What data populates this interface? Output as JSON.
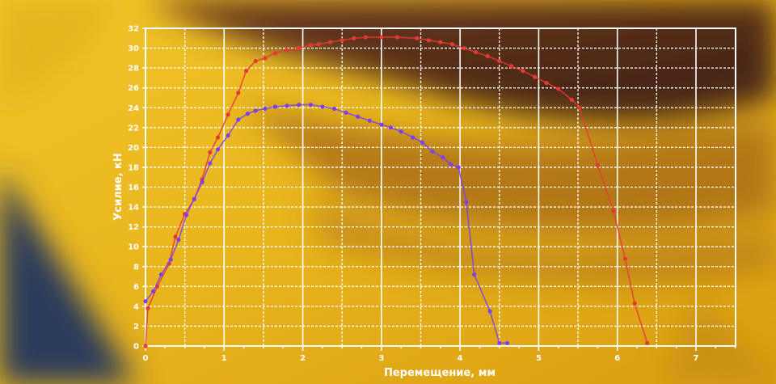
{
  "chart_data": {
    "type": "line",
    "title": "",
    "xlabel": "Перемещение, мм",
    "ylabel": "Усилие, кН",
    "xlim": [
      0,
      7.5
    ],
    "ylim": [
      0,
      32
    ],
    "xticks": [
      "0",
      "1",
      "2",
      "3",
      "4",
      "5",
      "6",
      "7"
    ],
    "yticks": [
      "0",
      "2",
      "4",
      "6",
      "8",
      "10",
      "12",
      "14",
      "16",
      "18",
      "20",
      "22",
      "24",
      "26",
      "28",
      "30",
      "32"
    ],
    "grid": true,
    "legend": "none",
    "series": [
      {
        "color": "#e53935",
        "points": [
          [
            0,
            0
          ],
          [
            0.03,
            3.8
          ],
          [
            0.15,
            6.0
          ],
          [
            0.3,
            8.3
          ],
          [
            0.38,
            11.0
          ],
          [
            0.5,
            13.3
          ],
          [
            0.62,
            14.8
          ],
          [
            0.72,
            16.8
          ],
          [
            0.82,
            19.5
          ],
          [
            0.92,
            21.0
          ],
          [
            1.05,
            23.3
          ],
          [
            1.18,
            25.5
          ],
          [
            1.28,
            27.7
          ],
          [
            1.4,
            28.7
          ],
          [
            1.52,
            29.0
          ],
          [
            1.65,
            29.5
          ],
          [
            1.8,
            29.8
          ],
          [
            1.95,
            30.0
          ],
          [
            2.1,
            30.3
          ],
          [
            2.2,
            30.4
          ],
          [
            2.35,
            30.6
          ],
          [
            2.5,
            30.8
          ],
          [
            2.65,
            31.0
          ],
          [
            2.8,
            31.1
          ],
          [
            3.0,
            31.1
          ],
          [
            3.2,
            31.1
          ],
          [
            3.45,
            31.0
          ],
          [
            3.6,
            30.8
          ],
          [
            3.75,
            30.6
          ],
          [
            3.9,
            30.4
          ],
          [
            4.05,
            30.0
          ],
          [
            4.2,
            29.6
          ],
          [
            4.35,
            29.2
          ],
          [
            4.5,
            28.7
          ],
          [
            4.65,
            28.2
          ],
          [
            4.8,
            27.7
          ],
          [
            4.95,
            27.1
          ],
          [
            5.1,
            26.5
          ],
          [
            5.25,
            25.9
          ],
          [
            5.42,
            24.8
          ],
          [
            5.52,
            24.0
          ],
          [
            5.75,
            18.2
          ],
          [
            5.95,
            13.6
          ],
          [
            6.1,
            8.8
          ],
          [
            6.22,
            4.3
          ],
          [
            6.38,
            0.3
          ]
        ]
      },
      {
        "color": "#7e3ff2",
        "points": [
          [
            0,
            4.5
          ],
          [
            0.1,
            5.5
          ],
          [
            0.2,
            7.2
          ],
          [
            0.32,
            8.7
          ],
          [
            0.42,
            10.7
          ],
          [
            0.52,
            13.2
          ],
          [
            0.62,
            14.8
          ],
          [
            0.72,
            16.5
          ],
          [
            0.82,
            18.4
          ],
          [
            0.92,
            19.8
          ],
          [
            1.05,
            21.2
          ],
          [
            1.18,
            22.8
          ],
          [
            1.3,
            23.4
          ],
          [
            1.4,
            23.7
          ],
          [
            1.52,
            23.9
          ],
          [
            1.65,
            24.1
          ],
          [
            1.8,
            24.2
          ],
          [
            1.95,
            24.3
          ],
          [
            2.1,
            24.3
          ],
          [
            2.25,
            24.1
          ],
          [
            2.4,
            23.9
          ],
          [
            2.55,
            23.5
          ],
          [
            2.7,
            23.1
          ],
          [
            2.85,
            22.7
          ],
          [
            3.0,
            22.3
          ],
          [
            3.12,
            22.0
          ],
          [
            3.25,
            21.6
          ],
          [
            3.4,
            21.0
          ],
          [
            3.52,
            20.5
          ],
          [
            3.65,
            19.6
          ],
          [
            3.78,
            19.0
          ],
          [
            3.88,
            18.3
          ],
          [
            3.98,
            18.0
          ],
          [
            4.08,
            14.5
          ],
          [
            4.18,
            7.2
          ],
          [
            4.38,
            3.5
          ],
          [
            4.5,
            0.3
          ],
          [
            4.6,
            0.3
          ]
        ]
      }
    ]
  }
}
